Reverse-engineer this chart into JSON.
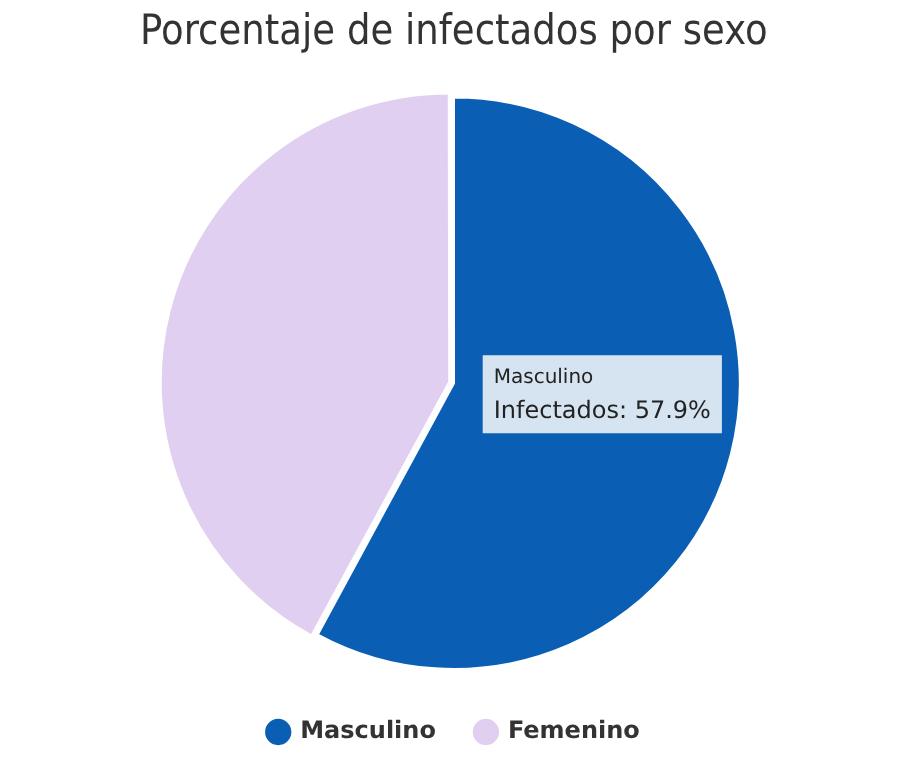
{
  "chart_data": {
    "type": "pie",
    "title": "Porcentaje de infectados por sexo",
    "categories": [
      "Masculino",
      "Femenino"
    ],
    "values": [
      57.9,
      42.1
    ],
    "colors": [
      "#0a5fb4",
      "#e0cff0"
    ],
    "value_labels": [
      "Infectados: 57.9%",
      null
    ],
    "legend": "bottom"
  }
}
